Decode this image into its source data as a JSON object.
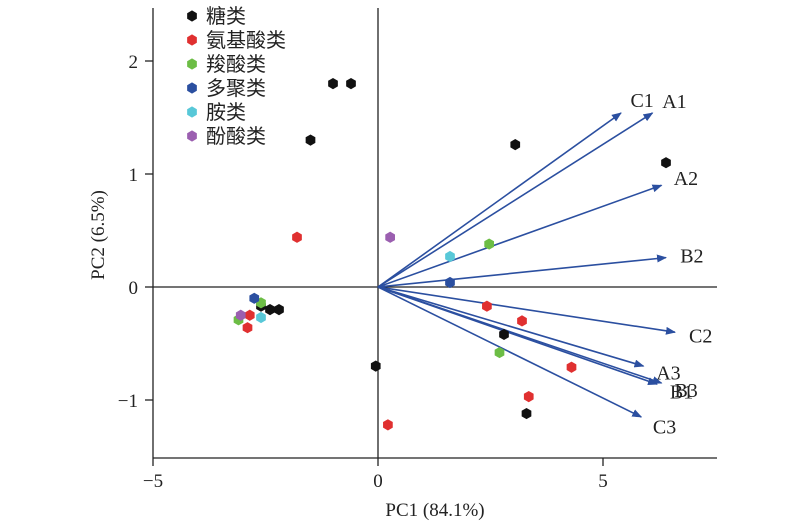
{
  "chart_data": {
    "type": "scatter",
    "title": "",
    "xlabel": "PC1 (84.1%)",
    "ylabel": "PC2 (6.5%)",
    "xlim": [
      -5,
      7.5
    ],
    "ylim": [
      -1.5,
      2.5
    ],
    "xticks": [
      -5,
      0,
      5
    ],
    "xtick_labels": [
      "−5",
      "0",
      "5"
    ],
    "yticks": [
      -1,
      0,
      1,
      2
    ],
    "ytick_labels": [
      "−1",
      "0",
      "1",
      "2"
    ],
    "grid": false,
    "zero_lines": true,
    "legend_position": "top-left",
    "series": [
      {
        "name": "糖类",
        "color": "#111111",
        "points": [
          [
            -1.0,
            1.8
          ],
          [
            -0.6,
            1.8
          ],
          [
            -1.5,
            1.3
          ],
          [
            3.05,
            1.26
          ],
          [
            6.4,
            1.1
          ],
          [
            -2.4,
            -0.2
          ],
          [
            -2.2,
            -0.2
          ],
          [
            -2.6,
            -0.17
          ],
          [
            -0.05,
            -0.7
          ],
          [
            2.8,
            -0.42
          ],
          [
            3.3,
            -1.12
          ]
        ]
      },
      {
        "name": "氨基酸类",
        "color": "#e03030",
        "points": [
          [
            -1.8,
            0.44
          ],
          [
            -2.85,
            -0.25
          ],
          [
            -2.9,
            -0.36
          ],
          [
            2.42,
            -0.17
          ],
          [
            3.2,
            -0.3
          ],
          [
            4.3,
            -0.71
          ],
          [
            3.35,
            -0.97
          ],
          [
            0.22,
            -1.22
          ]
        ]
      },
      {
        "name": "羧酸类",
        "color": "#6cbd45",
        "points": [
          [
            2.47,
            0.38
          ],
          [
            -2.6,
            -0.14
          ],
          [
            -3.1,
            -0.29
          ],
          [
            2.7,
            -0.58
          ]
        ]
      },
      {
        "name": "多聚类",
        "color": "#2b4fa0",
        "points": [
          [
            1.6,
            0.04
          ],
          [
            -2.75,
            -0.1
          ]
        ]
      },
      {
        "name": "胺类",
        "color": "#58c8d8",
        "points": [
          [
            1.6,
            0.27
          ],
          [
            -2.6,
            -0.27
          ]
        ]
      },
      {
        "name": "酚酸类",
        "color": "#9b5fb0",
        "points": [
          [
            0.27,
            0.44
          ],
          [
            -3.05,
            -0.25
          ]
        ]
      }
    ],
    "vectors": [
      {
        "label": "C1",
        "x": 5.4,
        "y": 1.54
      },
      {
        "label": "A1",
        "x": 6.1,
        "y": 1.54
      },
      {
        "label": "A2",
        "x": 6.3,
        "y": 0.9
      },
      {
        "label": "B2",
        "x": 6.4,
        "y": 0.26
      },
      {
        "label": "C2",
        "x": 6.6,
        "y": -0.4
      },
      {
        "label": "A3",
        "x": 5.9,
        "y": -0.7
      },
      {
        "label": "B3",
        "x": 6.3,
        "y": -0.85
      },
      {
        "label": "B1",
        "x": 6.2,
        "y": -0.86
      },
      {
        "label": "C3",
        "x": 5.85,
        "y": -1.15
      }
    ],
    "vector_color": "#2b4fa0"
  }
}
